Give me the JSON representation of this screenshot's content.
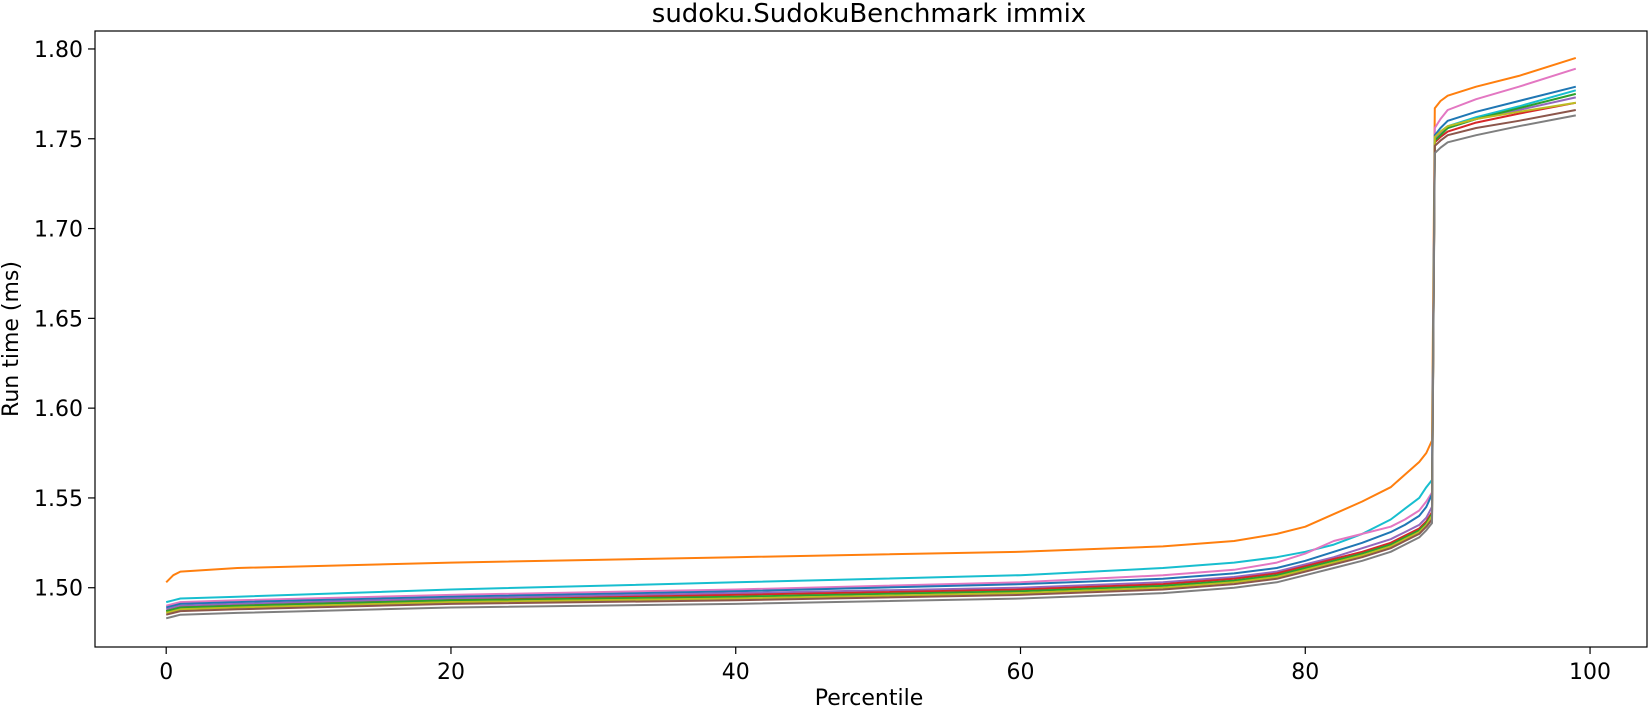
{
  "chart_data": {
    "type": "line",
    "title": "sudoku.SudokuBenchmark immix",
    "xlabel": "Percentile",
    "ylabel": "Run time (ms)",
    "xlim": [
      -5,
      104
    ],
    "ylim": [
      1.467,
      1.81
    ],
    "xticks": [
      0,
      20,
      40,
      60,
      80,
      100
    ],
    "yticks": [
      1.5,
      1.55,
      1.6,
      1.65,
      1.7,
      1.75,
      1.8
    ],
    "xtick_labels": [
      "0",
      "20",
      "40",
      "60",
      "80",
      "100"
    ],
    "ytick_labels": [
      "1.50",
      "1.55",
      "1.60",
      "1.65",
      "1.70",
      "1.75",
      "1.80"
    ],
    "grid": false,
    "legend": false,
    "x": [
      0,
      0.5,
      1,
      5,
      20,
      40,
      60,
      70,
      75,
      78,
      80,
      82,
      84,
      86,
      87,
      88,
      88.5,
      88.9,
      89.1,
      89.5,
      90,
      92,
      95,
      99
    ],
    "series": [
      {
        "color": "#ff7f0e",
        "values": [
          1.503,
          1.507,
          1.509,
          1.511,
          1.514,
          1.517,
          1.52,
          1.523,
          1.526,
          1.53,
          1.534,
          1.541,
          1.548,
          1.556,
          1.563,
          1.57,
          1.575,
          1.582,
          1.767,
          1.771,
          1.774,
          1.779,
          1.785,
          1.795
        ]
      },
      {
        "color": "#17becf",
        "values": [
          1.492,
          1.493,
          1.494,
          1.495,
          1.499,
          1.503,
          1.507,
          1.511,
          1.514,
          1.517,
          1.52,
          1.524,
          1.53,
          1.538,
          1.544,
          1.55,
          1.556,
          1.56,
          1.75,
          1.754,
          1.757,
          1.762,
          1.768,
          1.777
        ]
      },
      {
        "color": "#e377c2",
        "values": [
          1.49,
          1.491,
          1.492,
          1.493,
          1.496,
          1.499,
          1.503,
          1.507,
          1.51,
          1.514,
          1.519,
          1.526,
          1.53,
          1.534,
          1.538,
          1.543,
          1.548,
          1.553,
          1.756,
          1.761,
          1.766,
          1.772,
          1.779,
          1.789
        ]
      },
      {
        "color": "#1f77b4",
        "values": [
          1.489,
          1.49,
          1.491,
          1.492,
          1.495,
          1.498,
          1.502,
          1.505,
          1.508,
          1.511,
          1.515,
          1.52,
          1.525,
          1.531,
          1.535,
          1.54,
          1.545,
          1.552,
          1.752,
          1.756,
          1.76,
          1.765,
          1.771,
          1.779
        ]
      },
      {
        "color": "#9467bd",
        "values": [
          1.488,
          1.489,
          1.49,
          1.491,
          1.494,
          1.497,
          1.5,
          1.503,
          1.506,
          1.509,
          1.513,
          1.517,
          1.522,
          1.527,
          1.531,
          1.535,
          1.539,
          1.545,
          1.75,
          1.753,
          1.756,
          1.761,
          1.766,
          1.773
        ]
      },
      {
        "color": "#d62728",
        "values": [
          1.487,
          1.488,
          1.489,
          1.49,
          1.493,
          1.496,
          1.499,
          1.502,
          1.505,
          1.508,
          1.512,
          1.516,
          1.52,
          1.525,
          1.529,
          1.533,
          1.537,
          1.542,
          1.748,
          1.751,
          1.754,
          1.759,
          1.764,
          1.77
        ]
      },
      {
        "color": "#2ca02c",
        "values": [
          1.487,
          1.488,
          1.489,
          1.49,
          1.493,
          1.495,
          1.498,
          1.501,
          1.504,
          1.507,
          1.511,
          1.515,
          1.519,
          1.524,
          1.528,
          1.532,
          1.536,
          1.541,
          1.749,
          1.752,
          1.756,
          1.761,
          1.767,
          1.775
        ]
      },
      {
        "color": "#bcbd22",
        "values": [
          1.486,
          1.487,
          1.488,
          1.489,
          1.492,
          1.494,
          1.497,
          1.5,
          1.503,
          1.506,
          1.51,
          1.514,
          1.518,
          1.523,
          1.527,
          1.531,
          1.535,
          1.54,
          1.751,
          1.754,
          1.757,
          1.761,
          1.765,
          1.77
        ]
      },
      {
        "color": "#8c564b",
        "values": [
          1.485,
          1.486,
          1.487,
          1.488,
          1.491,
          1.493,
          1.496,
          1.499,
          1.502,
          1.505,
          1.509,
          1.513,
          1.517,
          1.522,
          1.526,
          1.53,
          1.534,
          1.538,
          1.746,
          1.749,
          1.752,
          1.756,
          1.76,
          1.766
        ]
      },
      {
        "color": "#7f7f7f",
        "values": [
          1.483,
          1.484,
          1.485,
          1.486,
          1.489,
          1.491,
          1.494,
          1.497,
          1.5,
          1.503,
          1.507,
          1.511,
          1.515,
          1.52,
          1.524,
          1.528,
          1.532,
          1.536,
          1.742,
          1.745,
          1.748,
          1.752,
          1.757,
          1.763
        ]
      }
    ]
  }
}
